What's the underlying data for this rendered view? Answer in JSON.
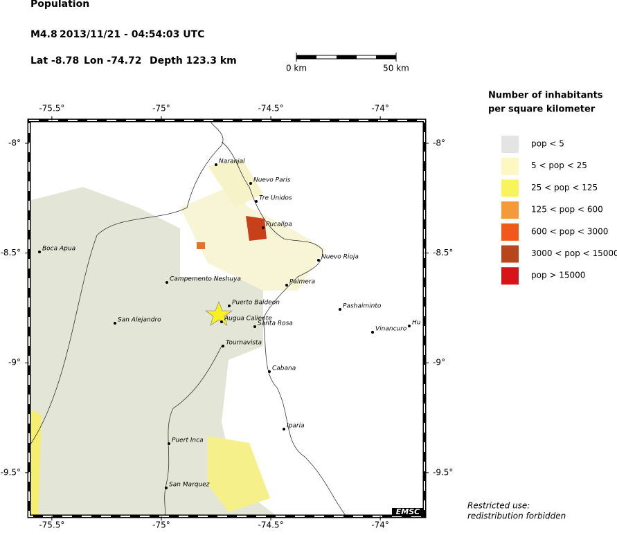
{
  "header": {
    "title": "Population",
    "magnitude": "M4.8",
    "datetime": "2013/11/21 - 04:54:03 UTC",
    "lat": "Lat -8.78",
    "lon": "Lon -74.72",
    "depth": "Depth 123.3 km"
  },
  "scale_bar": {
    "start_label": "0 km",
    "end_label": "50 km"
  },
  "map": {
    "lon_ticks": [
      {
        "value": -75.5,
        "label": "-75.5°"
      },
      {
        "value": -75,
        "label": "-75°"
      },
      {
        "value": -74.5,
        "label": "-74.5°"
      },
      {
        "value": -74,
        "label": "-74°"
      }
    ],
    "lat_ticks": [
      {
        "value": -8,
        "label": "-8°"
      },
      {
        "value": -8.5,
        "label": "-8.5°"
      },
      {
        "value": -9,
        "label": "-9°"
      },
      {
        "value": -9.5,
        "label": "-9.5°"
      }
    ],
    "cities": [
      "Naranjal",
      "Nuevo Paris",
      "Tre Unidos",
      "Pucallpa",
      "Boca Apua",
      "Nuevo Rioja",
      "Campemento Neshuya",
      "Palmera",
      "Puerto Baldeon",
      "Pashaiminto",
      "Augua Caliente",
      "Santa Rosa",
      "San Alejandro",
      "Vinancuro",
      "Hu",
      "Tournavista",
      "Cabana",
      "Iparia",
      "Puert Inca",
      "San Marquez"
    ],
    "logo": "EMSC"
  },
  "legend": {
    "title_line1": "Number of inhabitants",
    "title_line2": "per square kilometer",
    "items": [
      {
        "label": "pop < 5",
        "color": "#e4e4e4"
      },
      {
        "label": "5 < pop < 25",
        "color": "#fbf8c2"
      },
      {
        "label": "25 < pop < 125",
        "color": "#f8f45c"
      },
      {
        "label": "125 < pop < 600",
        "color": "#f59a38"
      },
      {
        "label": "600 < pop < 3000",
        "color": "#f2581c"
      },
      {
        "label": "3000 < pop < 15000",
        "color": "#b8461c"
      },
      {
        "label": "pop > 15000",
        "color": "#d6141a"
      }
    ]
  },
  "footer": {
    "line1": "Restricted use:",
    "line2": "redistribution forbidden"
  }
}
